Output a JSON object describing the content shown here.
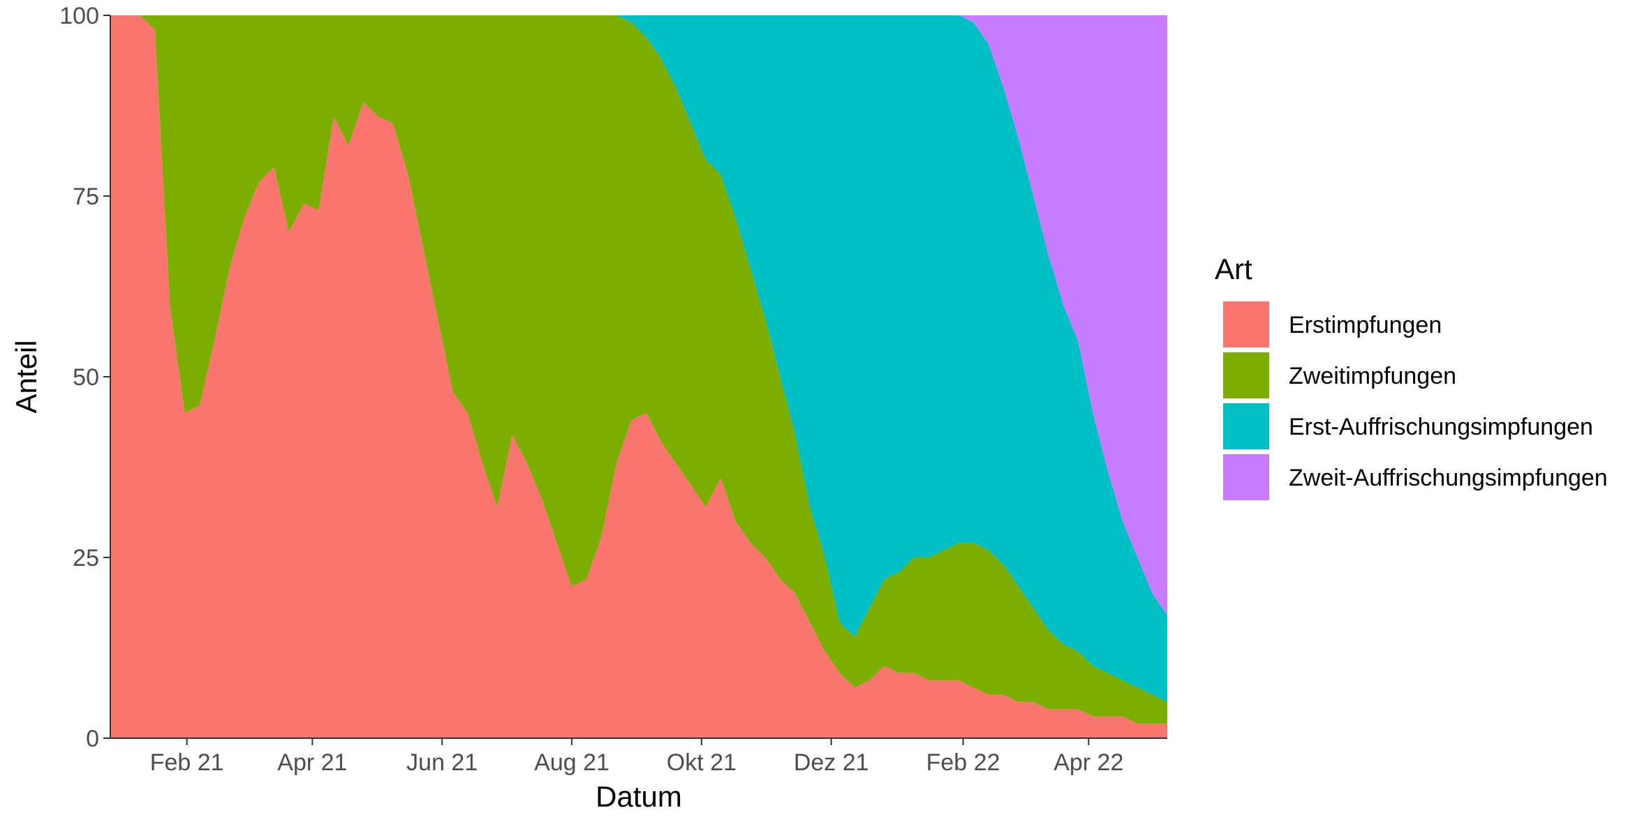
{
  "chart_data": {
    "type": "area",
    "stacked": "percent",
    "xlabel": "Datum",
    "ylabel": "Anteil",
    "ylim": [
      0,
      100
    ],
    "xlim": [
      "2020-12-27",
      "2022-05-08"
    ],
    "y_ticks": [
      0,
      25,
      50,
      75,
      100
    ],
    "y_tick_labels": [
      "0",
      "25",
      "50",
      "75",
      "100"
    ],
    "x_ticks": [
      "2021-02-01",
      "2021-04-01",
      "2021-06-01",
      "2021-08-01",
      "2021-10-01",
      "2021-12-01",
      "2022-02-01",
      "2022-04-01"
    ],
    "x_tick_labels": [
      "Feb 21",
      "Apr 21",
      "Jun 21",
      "Aug 21",
      "Okt 21",
      "Dez 21",
      "Feb 22",
      "Apr 22"
    ],
    "legend": {
      "title": "Art",
      "position": "right"
    },
    "grid": false,
    "x": [
      "2020-12-27",
      "2021-01-10",
      "2021-01-17",
      "2021-01-24",
      "2021-01-31",
      "2021-02-07",
      "2021-02-14",
      "2021-02-21",
      "2021-02-28",
      "2021-03-07",
      "2021-03-14",
      "2021-03-21",
      "2021-03-28",
      "2021-04-04",
      "2021-04-11",
      "2021-04-18",
      "2021-04-25",
      "2021-05-02",
      "2021-05-09",
      "2021-05-16",
      "2021-05-23",
      "2021-05-30",
      "2021-06-06",
      "2021-06-13",
      "2021-06-20",
      "2021-06-27",
      "2021-07-04",
      "2021-07-11",
      "2021-07-18",
      "2021-07-25",
      "2021-08-01",
      "2021-08-08",
      "2021-08-15",
      "2021-08-22",
      "2021-08-29",
      "2021-09-05",
      "2021-09-12",
      "2021-09-19",
      "2021-09-26",
      "2021-10-03",
      "2021-10-10",
      "2021-10-17",
      "2021-10-24",
      "2021-10-31",
      "2021-11-07",
      "2021-11-14",
      "2021-11-21",
      "2021-11-28",
      "2021-12-05",
      "2021-12-12",
      "2021-12-19",
      "2021-12-26",
      "2022-01-02",
      "2022-01-09",
      "2022-01-16",
      "2022-01-23",
      "2022-01-30",
      "2022-02-06",
      "2022-02-13",
      "2022-02-20",
      "2022-02-27",
      "2022-03-06",
      "2022-03-13",
      "2022-03-20",
      "2022-03-27",
      "2022-04-03",
      "2022-04-10",
      "2022-04-17",
      "2022-04-24",
      "2022-05-01",
      "2022-05-08"
    ],
    "series": [
      {
        "name": "Erstimpfungen",
        "color": "#F8766D",
        "values": [
          100,
          100,
          98,
          60,
          45,
          46,
          55,
          65,
          72,
          77,
          79,
          70,
          74,
          73,
          86,
          82,
          88,
          86,
          85,
          78,
          68,
          58,
          48,
          45,
          38,
          32,
          42,
          38,
          33,
          27,
          21,
          22,
          28,
          38,
          44,
          45,
          41,
          38,
          35,
          32,
          36,
          30,
          27,
          25,
          22,
          20,
          16,
          12,
          9,
          7,
          8,
          10,
          9,
          9,
          8,
          8,
          8,
          7,
          6,
          6,
          5,
          5,
          4,
          4,
          4,
          3,
          3,
          3,
          2,
          2,
          2
        ]
      },
      {
        "name": "Zweitimpfungen",
        "color": "#7CAE00",
        "values": [
          0,
          0,
          2,
          40,
          55,
          54,
          45,
          35,
          28,
          23,
          21,
          30,
          26,
          27,
          14,
          18,
          12,
          14,
          15,
          22,
          32,
          42,
          52,
          55,
          62,
          68,
          58,
          62,
          67,
          73,
          79,
          78,
          72,
          62,
          55,
          52,
          53,
          52,
          50,
          48,
          42,
          42,
          38,
          33,
          28,
          22,
          16,
          13,
          7,
          7,
          10,
          12,
          14,
          16,
          17,
          18,
          19,
          20,
          20,
          18,
          16,
          13,
          11,
          9,
          8,
          7,
          6,
          5,
          5,
          4,
          3
        ]
      },
      {
        "name": "Erst-Auffrischungsimpfungen",
        "color": "#00BFC4",
        "values": [
          0,
          0,
          0,
          0,
          0,
          0,
          0,
          0,
          0,
          0,
          0,
          0,
          0,
          0,
          0,
          0,
          0,
          0,
          0,
          0,
          0,
          0,
          0,
          0,
          0,
          0,
          0,
          0,
          0,
          0,
          0,
          0,
          0,
          0,
          1,
          3,
          6,
          10,
          15,
          20,
          22,
          28,
          35,
          42,
          50,
          58,
          68,
          75,
          84,
          86,
          82,
          78,
          77,
          75,
          75,
          74,
          73,
          72,
          70,
          66,
          62,
          57,
          52,
          47,
          43,
          35,
          28,
          22,
          18,
          14,
          12
        ]
      },
      {
        "name": "Zweit-Auffrischungsimpfungen",
        "color": "#C77CFF",
        "values": [
          0,
          0,
          0,
          0,
          0,
          0,
          0,
          0,
          0,
          0,
          0,
          0,
          0,
          0,
          0,
          0,
          0,
          0,
          0,
          0,
          0,
          0,
          0,
          0,
          0,
          0,
          0,
          0,
          0,
          0,
          0,
          0,
          0,
          0,
          0,
          0,
          0,
          0,
          0,
          0,
          0,
          0,
          0,
          0,
          0,
          0,
          0,
          0,
          0,
          0,
          0,
          0,
          0,
          0,
          0,
          0,
          0,
          1,
          4,
          10,
          17,
          25,
          33,
          40,
          45,
          55,
          63,
          70,
          75,
          80,
          83
        ]
      }
    ]
  }
}
